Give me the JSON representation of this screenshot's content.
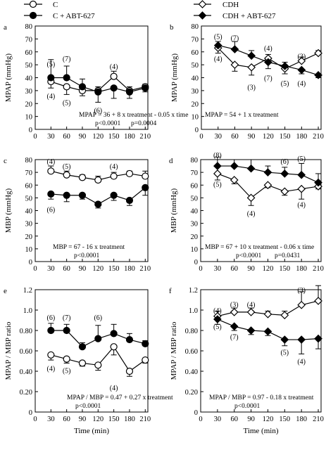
{
  "legend": {
    "left": [
      {
        "marker": "open-circle",
        "label": "C"
      },
      {
        "marker": "filled-circle",
        "label": "C + ABT-627"
      }
    ],
    "right": [
      {
        "marker": "open-diamond",
        "label": "CDH"
      },
      {
        "marker": "filled-diamond",
        "label": "CDH + ABT-627"
      }
    ]
  },
  "colors": {
    "ink": "#000000",
    "open_fill": "#ffffff"
  },
  "chart_data": [
    {
      "id": "a",
      "type": "line",
      "panel_label": "a",
      "ylabel": "MPAP (mmHg)",
      "xlabel": "",
      "ylim": [
        0,
        80
      ],
      "yticks": [
        0,
        10,
        20,
        30,
        40,
        50,
        60,
        70,
        80
      ],
      "xlim": [
        0,
        215
      ],
      "xticks": [
        0,
        30,
        60,
        90,
        120,
        150,
        180,
        210
      ],
      "x": [
        30,
        60,
        90,
        120,
        150,
        180,
        210
      ],
      "series": [
        {
          "name": "C",
          "marker": "open-circle",
          "values": [
            37,
            33,
            30,
            30,
            41,
            30,
            33
          ],
          "err": [
            5,
            6,
            4,
            3,
            4,
            3,
            2
          ]
        },
        {
          "name": "C + ABT-627",
          "marker": "filled-circle",
          "values": [
            40,
            40,
            33,
            29,
            32,
            29,
            32
          ],
          "err": [
            14,
            9,
            6,
            8,
            8,
            5,
            3
          ]
        }
      ],
      "annotations": [
        {
          "text": "(5)",
          "x": 30,
          "y": 51
        },
        {
          "text": "(4)",
          "x": 30,
          "y": 26
        },
        {
          "text": "(7)",
          "x": 60,
          "y": 55
        },
        {
          "text": "(5)",
          "x": 60,
          "y": 21
        },
        {
          "text": "(6)",
          "x": 120,
          "y": 15
        },
        {
          "text": "(4)",
          "x": 150,
          "y": 49
        }
      ],
      "equations": [
        "MPAP = 36 + 8 x treatment - 0.05 x time",
        "p<0.0001",
        "p=0.0004"
      ]
    },
    {
      "id": "b",
      "type": "line",
      "panel_label": "b",
      "ylabel": "MPAP (mmHg)",
      "xlabel": "",
      "ylim": [
        0,
        80
      ],
      "yticks": [
        0,
        10,
        20,
        30,
        40,
        50,
        60,
        70,
        80
      ],
      "xlim": [
        0,
        215
      ],
      "xticks": [
        0,
        30,
        60,
        90,
        120,
        150,
        180,
        210
      ],
      "x": [
        30,
        60,
        90,
        120,
        150,
        180,
        210
      ],
      "series": [
        {
          "name": "CDH",
          "marker": "open-diamond",
          "values": [
            63,
            50,
            48,
            55,
            47,
            53,
            59
          ],
          "err": [
            4,
            5,
            6,
            3,
            4,
            3,
            2
          ]
        },
        {
          "name": "CDH + ABT-627",
          "marker": "filled-diamond",
          "values": [
            65,
            62,
            57,
            52,
            49,
            46,
            42
          ],
          "err": [
            3,
            6,
            4,
            5,
            3,
            3,
            2
          ]
        }
      ],
      "annotations": [
        {
          "text": "(5)",
          "x": 30,
          "y": 72
        },
        {
          "text": "(4)",
          "x": 30,
          "y": 55
        },
        {
          "text": "(7)",
          "x": 60,
          "y": 71
        },
        {
          "text": "(3)",
          "x": 90,
          "y": 33
        },
        {
          "text": "(4)",
          "x": 120,
          "y": 63
        },
        {
          "text": "(7)",
          "x": 120,
          "y": 40
        },
        {
          "text": "(5)",
          "x": 150,
          "y": 36
        },
        {
          "text": "(3)",
          "x": 180,
          "y": 57
        },
        {
          "text": "(4)",
          "x": 180,
          "y": 36
        }
      ],
      "equations": [
        "MPAP = 54 + 1 x treatment"
      ]
    },
    {
      "id": "c",
      "type": "line",
      "panel_label": "c",
      "ylabel": "MBP (mmHg)",
      "xlabel": "",
      "ylim": [
        0,
        80
      ],
      "yticks": [
        0,
        10,
        20,
        30,
        40,
        50,
        60,
        70,
        80
      ],
      "xlim": [
        0,
        215
      ],
      "xticks": [
        0,
        30,
        60,
        90,
        120,
        150,
        180,
        210
      ],
      "x": [
        30,
        60,
        90,
        120,
        150,
        180,
        210
      ],
      "series": [
        {
          "name": "C",
          "marker": "open-circle",
          "values": [
            71,
            68,
            66,
            64,
            67,
            69,
            67
          ],
          "err": [
            4,
            3,
            2,
            3,
            3,
            2,
            4
          ]
        },
        {
          "name": "C + ABT-627",
          "marker": "filled-circle",
          "values": [
            53,
            52,
            52,
            45,
            52,
            48,
            58
          ],
          "err": [
            4,
            5,
            3,
            3,
            4,
            4,
            6
          ]
        }
      ],
      "annotations": [
        {
          "text": "(4)",
          "x": 30,
          "y": 79
        },
        {
          "text": "(5)",
          "x": 60,
          "y": 75
        },
        {
          "text": "(4)",
          "x": 150,
          "y": 75
        },
        {
          "text": "(6)",
          "x": 30,
          "y": 41
        }
      ],
      "equations": [
        "MBP = 67 - 16 x treatment",
        "p<0.0001"
      ]
    },
    {
      "id": "d",
      "type": "line",
      "panel_label": "d",
      "ylabel": "MBP (mmHg)",
      "xlabel": "",
      "ylim": [
        0,
        80
      ],
      "yticks": [
        0,
        10,
        20,
        30,
        40,
        50,
        60,
        70,
        80
      ],
      "xlim": [
        0,
        215
      ],
      "xticks": [
        0,
        30,
        60,
        90,
        120,
        150,
        180,
        210
      ],
      "x": [
        30,
        60,
        90,
        120,
        150,
        180,
        210
      ],
      "series": [
        {
          "name": "CDH",
          "marker": "open-diamond",
          "values": [
            69,
            64,
            50,
            60,
            55,
            57,
            59
          ],
          "err": [
            5,
            3,
            6,
            2,
            3,
            8,
            2
          ]
        },
        {
          "name": "CDH + ABT-627",
          "marker": "filled-diamond",
          "values": [
            75,
            75,
            73,
            70,
            69,
            68,
            62
          ],
          "err": [
            7,
            5,
            7,
            5,
            5,
            9,
            7
          ]
        }
      ],
      "annotations": [
        {
          "text": "(8)",
          "x": 30,
          "y": 84
        },
        {
          "text": "(5)",
          "x": 30,
          "y": 61
        },
        {
          "text": "(4)",
          "x": 90,
          "y": 38
        },
        {
          "text": "(6)",
          "x": 150,
          "y": 79
        },
        {
          "text": "(5)",
          "x": 180,
          "y": 81
        },
        {
          "text": "(4)",
          "x": 180,
          "y": 45
        }
      ],
      "equations": [
        "MBP = 67 + 10 x treatment - 0.06 x time",
        "p<0.0001",
        "p=0.0431"
      ]
    },
    {
      "id": "e",
      "type": "line",
      "panel_label": "e",
      "ylabel": "MPAP / MBP ratio",
      "xlabel": "Time (min)",
      "ylim": [
        0,
        1.2
      ],
      "yticks": [
        0,
        0.2,
        0.4,
        0.6,
        0.8,
        1.0,
        1.2
      ],
      "ytick_labels": [
        "0",
        "0.20",
        "0.40",
        "0.60",
        "0.80",
        "1.0",
        "1.2"
      ],
      "xlim": [
        0,
        215
      ],
      "xticks": [
        0,
        30,
        60,
        90,
        120,
        150,
        180,
        210
      ],
      "x": [
        30,
        60,
        90,
        120,
        150,
        180,
        210
      ],
      "series": [
        {
          "name": "C",
          "marker": "open-circle",
          "values": [
            0.56,
            0.52,
            0.48,
            0.46,
            0.64,
            0.4,
            0.51
          ],
          "err": [
            0.05,
            0.04,
            0.03,
            0.05,
            0.08,
            0.05,
            0.03
          ]
        },
        {
          "name": "C + ABT-627",
          "marker": "filled-circle",
          "values": [
            0.8,
            0.8,
            0.64,
            0.72,
            0.77,
            0.71,
            0.67
          ],
          "err": [
            0.07,
            0.06,
            0.04,
            0.13,
            0.09,
            0.06,
            0.03
          ]
        }
      ],
      "annotations": [
        {
          "text": "(6)",
          "x": 30,
          "y": 0.93
        },
        {
          "text": "(7)",
          "x": 60,
          "y": 0.93
        },
        {
          "text": "(6)",
          "x": 120,
          "y": 0.93
        },
        {
          "text": "(4)",
          "x": 30,
          "y": 0.43
        },
        {
          "text": "(5)",
          "x": 60,
          "y": 0.41
        },
        {
          "text": "(4)",
          "x": 150,
          "y": 0.24
        }
      ],
      "equations": [
        "MPAP / MBP = 0.47 + 0.27 x treatment",
        "p<0.0001"
      ]
    },
    {
      "id": "f",
      "type": "line",
      "panel_label": "f",
      "ylabel": "MPAP / MBP ratio",
      "xlabel": "Time (min)",
      "ylim": [
        0,
        1.2
      ],
      "yticks": [
        0,
        0.2,
        0.4,
        0.6,
        0.8,
        1.0,
        1.2
      ],
      "ytick_labels": [
        "0",
        "0.20",
        "0.40",
        "0.60",
        "0.80",
        "1.0",
        "1.2"
      ],
      "xlim": [
        0,
        215
      ],
      "xticks": [
        0,
        30,
        60,
        90,
        120,
        150,
        180,
        210
      ],
      "x": [
        30,
        60,
        90,
        120,
        150,
        180,
        210
      ],
      "series": [
        {
          "name": "CDH",
          "marker": "open-diamond",
          "values": [
            0.94,
            0.98,
            0.98,
            0.96,
            0.95,
            1.05,
            1.09
          ],
          "err": [
            0.05,
            0.04,
            0.04,
            0.03,
            0.04,
            0.13,
            0.15
          ]
        },
        {
          "name": "CDH + ABT-627",
          "marker": "filled-diamond",
          "values": [
            0.91,
            0.84,
            0.8,
            0.79,
            0.71,
            0.71,
            0.72
          ],
          "err": [
            0.05,
            0.04,
            0.04,
            0.04,
            0.06,
            0.14,
            0.1
          ]
        }
      ],
      "annotations": [
        {
          "text": "(4)",
          "x": 30,
          "y": 1.0
        },
        {
          "text": "(3)",
          "x": 60,
          "y": 1.06
        },
        {
          "text": "(4)",
          "x": 90,
          "y": 1.06
        },
        {
          "text": "(3)",
          "x": 180,
          "y": 1.2
        },
        {
          "text": "(5)",
          "x": 30,
          "y": 0.84
        },
        {
          "text": "(7)",
          "x": 60,
          "y": 0.74
        },
        {
          "text": "(5)",
          "x": 150,
          "y": 0.59
        },
        {
          "text": "(4)",
          "x": 180,
          "y": 0.5
        }
      ],
      "equations": [
        "MPAP / MBP = 0.97 - 0.18 x treatment",
        "p<0.0001"
      ]
    }
  ]
}
